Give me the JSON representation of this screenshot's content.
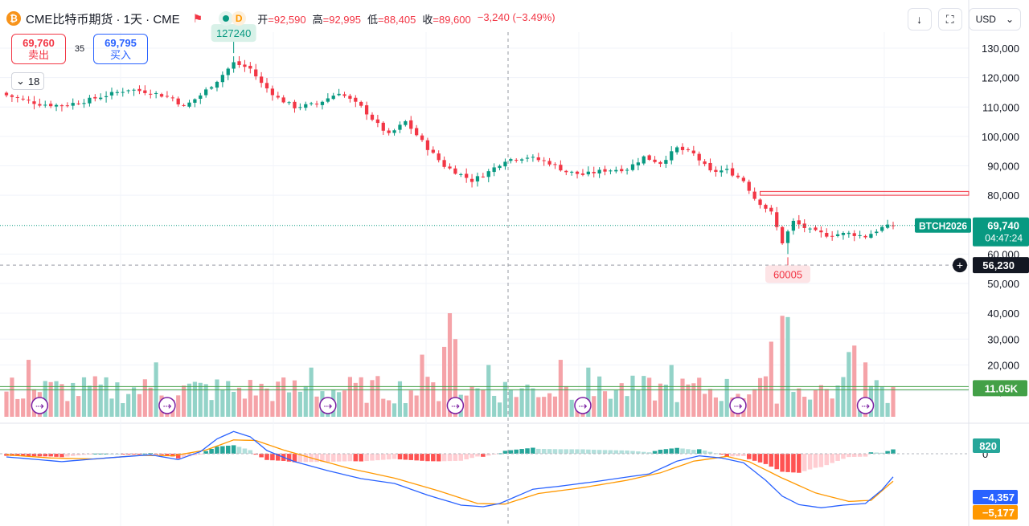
{
  "header": {
    "coin_icon_glyph": "₿",
    "title": "CME比特币期货 · 1天 · CME",
    "status_letter": "D",
    "open_label": "开",
    "open_value": "=92,590",
    "high_label": "高",
    "high_value": "=92,995",
    "low_label": "低",
    "low_value": "=88,405",
    "close_label": "收",
    "close_value": "=89,600",
    "change": "−3,240 (−3.49%)"
  },
  "quote": {
    "sell_price": "69,760",
    "sell_label": "卖出",
    "spread": "35",
    "buy_price": "69,795",
    "buy_label": "买入"
  },
  "indicator_toggle": {
    "count": "18"
  },
  "toolbar": {
    "currency": "USD"
  },
  "colors": {
    "up": "#089981",
    "down": "#f23645",
    "up_vol": "#93d3c8",
    "down_vol": "#f5a3a8",
    "macd_line": "#2962ff",
    "signal_line": "#ff9800",
    "accent": "#2962ff"
  },
  "chart_data": [
    {
      "type": "candlestick",
      "title": "CME比特币期货 · 1天 · CME",
      "ylim": [
        48000,
        134000
      ],
      "y_ticks": [
        "130,000",
        "120,000",
        "110,000",
        "100,000",
        "90,000",
        "80,000",
        "60,000",
        "50,000"
      ],
      "y_tick_values": [
        130000,
        120000,
        110000,
        100000,
        90000,
        80000,
        60000,
        50000
      ],
      "anchors_close": [
        [
          0,
          114000
        ],
        [
          6,
          111000
        ],
        [
          10,
          110500
        ],
        [
          14,
          112000
        ],
        [
          18,
          114000
        ],
        [
          22,
          116000
        ],
        [
          26,
          115000
        ],
        [
          30,
          113000
        ],
        [
          32,
          110000
        ],
        [
          35,
          114000
        ],
        [
          38,
          119000
        ],
        [
          41,
          125000
        ],
        [
          44,
          123000
        ],
        [
          46,
          118000
        ],
        [
          49,
          113000
        ],
        [
          52,
          110000
        ],
        [
          56,
          111000
        ],
        [
          60,
          115000
        ],
        [
          64,
          110000
        ],
        [
          67,
          104000
        ],
        [
          69,
          100500
        ],
        [
          72,
          105000
        ],
        [
          76,
          96000
        ],
        [
          79,
          90000
        ],
        [
          82,
          87000
        ],
        [
          84,
          85000
        ],
        [
          87,
          88000
        ],
        [
          90,
          92000
        ],
        [
          94,
          93000
        ],
        [
          98,
          91000
        ],
        [
          101,
          88000
        ],
        [
          104,
          87000
        ],
        [
          108,
          88500
        ],
        [
          112,
          89000
        ],
        [
          115,
          93000
        ],
        [
          118,
          91000
        ],
        [
          121,
          96000
        ],
        [
          124,
          94000
        ],
        [
          127,
          88000
        ],
        [
          130,
          88500
        ],
        [
          133,
          85000
        ],
        [
          135,
          79000
        ],
        [
          138,
          74000
        ],
        [
          140,
          64000
        ],
        [
          142,
          71000
        ],
        [
          145,
          68000
        ],
        [
          148,
          66500
        ],
        [
          152,
          67000
        ],
        [
          155,
          66000
        ],
        [
          158,
          69000
        ],
        [
          160,
          69740
        ]
      ],
      "n_candles": 161,
      "last_price": 69740,
      "last_symbol": "BTCH2026",
      "countdown": "04:47:24",
      "crosshair_price": 56230,
      "crosshair_label": "56,230",
      "high_marker": {
        "label": "127240",
        "value": 127240,
        "index": 41
      },
      "low_marker": {
        "label": "60005",
        "value": 60005,
        "index": 141
      },
      "zone": {
        "low": 80000,
        "high": 81300,
        "from_index": 136
      }
    },
    {
      "type": "bar",
      "title": "Volume",
      "ylim": [
        0,
        43000
      ],
      "y_ticks": [
        "40,000",
        "30,000",
        "20,000",
        "10,000"
      ],
      "y_tick_values": [
        40000,
        30000,
        20000,
        10000
      ],
      "avg_value": 11050,
      "avg_label": "11.05K",
      "spikes": [
        [
          4,
          22000
        ],
        [
          27,
          21000
        ],
        [
          55,
          19000
        ],
        [
          75,
          24000
        ],
        [
          79,
          27000
        ],
        [
          80,
          40000
        ],
        [
          81,
          30000
        ],
        [
          87,
          20000
        ],
        [
          100,
          22000
        ],
        [
          105,
          19000
        ],
        [
          120,
          20000
        ],
        [
          138,
          29000
        ],
        [
          140,
          39000
        ],
        [
          141,
          38500
        ],
        [
          152,
          25000
        ],
        [
          153,
          27500
        ],
        [
          155,
          21000
        ]
      ],
      "event_indices": [
        6,
        29,
        58,
        81,
        104,
        132,
        155
      ]
    },
    {
      "type": "line+histogram",
      "title": "MACD",
      "series": [
        {
          "name": "MACD",
          "anchors": [
            [
              0,
              -600
            ],
            [
              10,
              -1500
            ],
            [
              18,
              -800
            ],
            [
              26,
              -200
            ],
            [
              31,
              -1100
            ],
            [
              35,
              400
            ],
            [
              38,
              2800
            ],
            [
              41,
              4200
            ],
            [
              44,
              3200
            ],
            [
              47,
              600
            ],
            [
              52,
              -1500
            ],
            [
              58,
              -3200
            ],
            [
              64,
              -4700
            ],
            [
              70,
              -5600
            ],
            [
              76,
              -7800
            ],
            [
              82,
              -9700
            ],
            [
              86,
              -10000
            ],
            [
              89,
              -9400
            ],
            [
              95,
              -6700
            ],
            [
              100,
              -6100
            ],
            [
              106,
              -5300
            ],
            [
              112,
              -4400
            ],
            [
              116,
              -3800
            ],
            [
              121,
              -1400
            ],
            [
              125,
              -400
            ],
            [
              129,
              -800
            ],
            [
              133,
              -1700
            ],
            [
              137,
              -5000
            ],
            [
              140,
              -8000
            ],
            [
              143,
              -9600
            ],
            [
              147,
              -10200
            ],
            [
              151,
              -9700
            ],
            [
              155,
              -9400
            ],
            [
              158,
              -6800
            ],
            [
              160,
              -4357
            ]
          ]
        },
        {
          "name": "Signal",
          "anchors": [
            [
              0,
              -200
            ],
            [
              8,
              -800
            ],
            [
              16,
              -1000
            ],
            [
              24,
              -300
            ],
            [
              30,
              -400
            ],
            [
              36,
              700
            ],
            [
              41,
              2600
            ],
            [
              45,
              2500
            ],
            [
              50,
              700
            ],
            [
              55,
              -800
            ],
            [
              62,
              -2800
            ],
            [
              70,
              -4600
            ],
            [
              78,
              -7000
            ],
            [
              85,
              -9400
            ],
            [
              90,
              -9500
            ],
            [
              96,
              -7500
            ],
            [
              104,
              -6400
            ],
            [
              112,
              -5000
            ],
            [
              118,
              -3600
            ],
            [
              124,
              -1400
            ],
            [
              130,
              -500
            ],
            [
              134,
              -1500
            ],
            [
              140,
              -4600
            ],
            [
              146,
              -7400
            ],
            [
              152,
              -9000
            ],
            [
              156,
              -8800
            ],
            [
              160,
              -5177
            ]
          ]
        }
      ],
      "ylim": [
        -11000,
        6000
      ],
      "zero_label": "0",
      "hist_value_label": "820",
      "macd_label": "−4,357",
      "signal_label": "−5,177"
    }
  ]
}
